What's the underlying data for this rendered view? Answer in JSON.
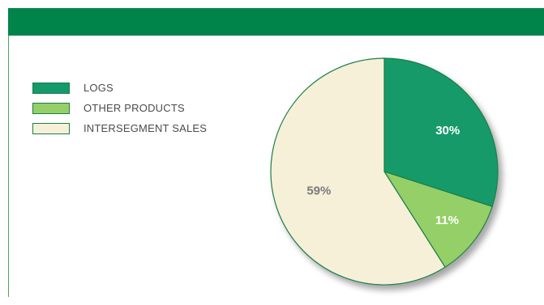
{
  "colors": {
    "header": "#00844a",
    "logs": "#149a6b",
    "other_products": "#95cf67",
    "intersegment_sales": "#f6f0d9",
    "outline": "#1b7f46"
  },
  "chart_data": {
    "type": "pie",
    "title": "",
    "slices": [
      {
        "label": "LOGS",
        "value": 30,
        "display": "30%",
        "color": "#149a6b",
        "label_color": "#ffffff"
      },
      {
        "label": "OTHER PRODUCTS",
        "value": 11,
        "display": "11%",
        "color": "#95cf67",
        "label_color": "#ffffff"
      },
      {
        "label": "INTERSEGMENT SALES",
        "value": 59,
        "display": "59%",
        "color": "#f6f0d9",
        "label_color": "#7a7a7a"
      }
    ],
    "start_angle_deg": 0,
    "direction": "clockwise",
    "legend_placement": "left"
  }
}
